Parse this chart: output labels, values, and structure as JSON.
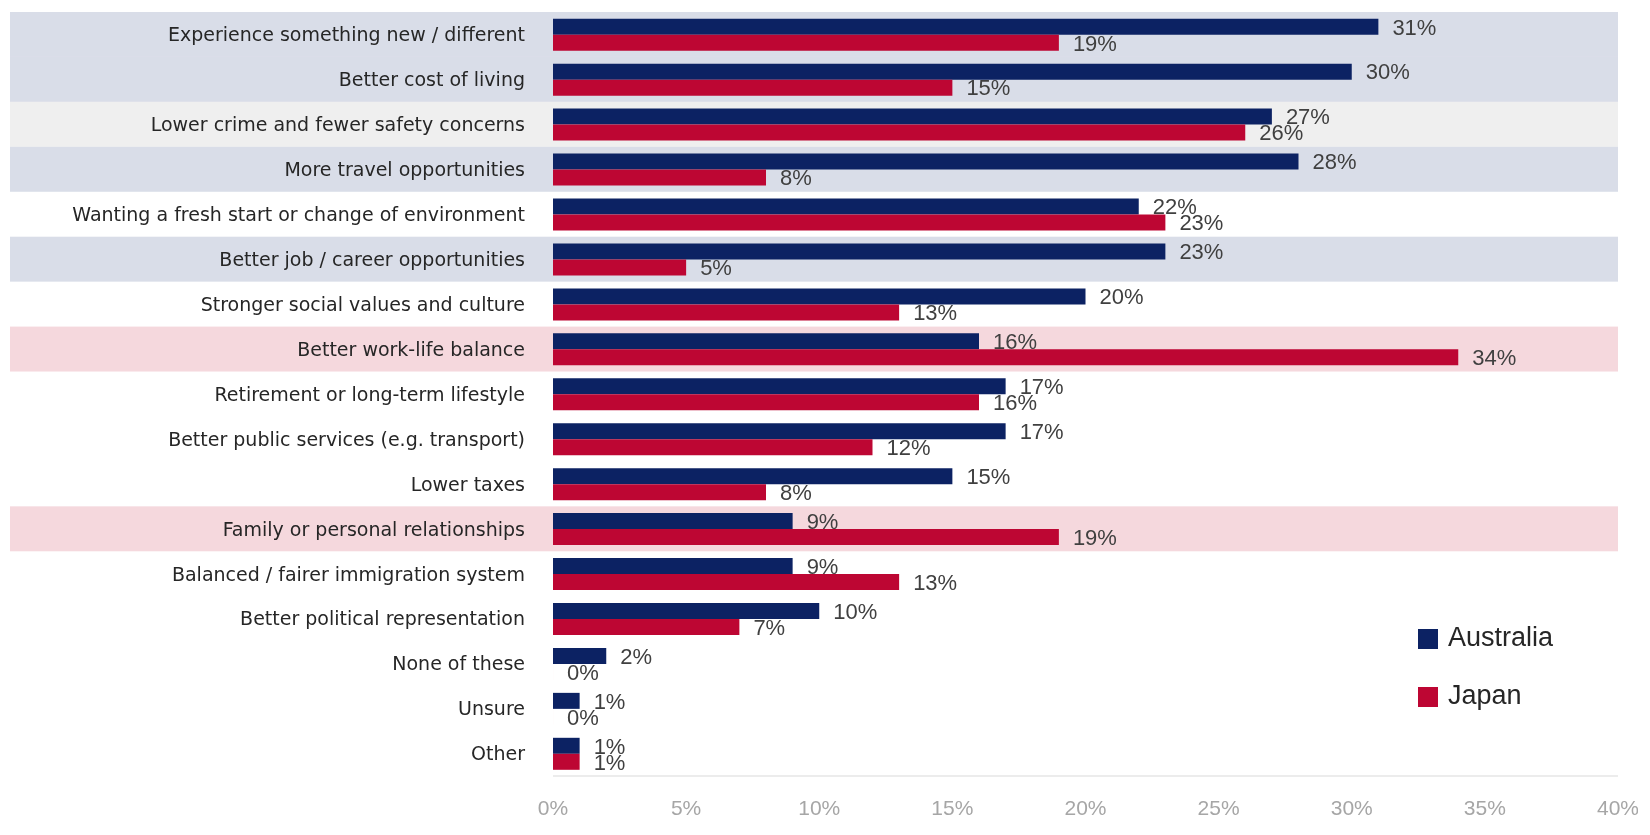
{
  "chart_data": {
    "type": "bar",
    "orientation": "horizontal",
    "categories": [
      "Experience something new / different",
      "Better cost of living",
      "Lower crime and fewer safety concerns",
      "More travel opportunities",
      "Wanting a fresh start or change of environment",
      "Better job / career opportunities",
      "Stronger social values and culture",
      "Better work-life balance",
      "Retirement or long-term lifestyle",
      "Better public services (e.g. transport)",
      "Lower taxes",
      "Family or personal relationships",
      "Balanced / fairer immigration system",
      "Better political representation",
      "None of these",
      "Unsure",
      "Other"
    ],
    "series": [
      {
        "name": "Australia",
        "color": "#0c2263",
        "values": [
          31,
          30,
          27,
          28,
          22,
          23,
          20,
          16,
          17,
          17,
          15,
          9,
          9,
          10,
          2,
          1,
          1
        ],
        "value_labels": [
          "31%",
          "30%",
          "27%",
          "28%",
          "22%",
          "23%",
          "20%",
          "16%",
          "17%",
          "17%",
          "15%",
          "9%",
          "9%",
          "10%",
          "2%",
          "1%",
          "1%"
        ]
      },
      {
        "name": "Japan",
        "color": "#bd0633",
        "values": [
          19,
          15,
          26,
          8,
          23,
          5,
          13,
          34,
          16,
          12,
          8,
          19,
          13,
          7,
          0,
          0,
          1
        ],
        "value_labels": [
          "19%",
          "15%",
          "26%",
          "8%",
          "23%",
          "5%",
          "13%",
          "34%",
          "16%",
          "12%",
          "8%",
          "19%",
          "13%",
          "7%",
          "0%",
          "0%",
          "1%"
        ]
      }
    ],
    "xlim": [
      0,
      40
    ],
    "xticks": [
      {
        "value": 0,
        "label": "0%"
      },
      {
        "value": 5,
        "label": "5%"
      },
      {
        "value": 10,
        "label": "10%"
      },
      {
        "value": 15,
        "label": "15%"
      },
      {
        "value": 20,
        "label": "20%"
      },
      {
        "value": 25,
        "label": "25%"
      },
      {
        "value": 30,
        "label": "30%"
      },
      {
        "value": 35,
        "label": "35%"
      },
      {
        "value": 40,
        "label": "40%"
      }
    ],
    "bands": [
      {
        "axis": "y",
        "from": "Experience something new / different",
        "to": "Experience something new / different",
        "color": "#d9dde8"
      },
      {
        "axis": "y",
        "from": "Better cost of living",
        "to": "Better cost of living",
        "color": "#d9dde8"
      },
      {
        "axis": "y",
        "from": "Lower crime and fewer safety concerns",
        "to": "Lower crime and fewer safety concerns",
        "color": "#efefef"
      },
      {
        "axis": "y",
        "from": "More travel opportunities",
        "to": "More travel opportunities",
        "color": "#d9dde8"
      },
      {
        "axis": "y",
        "from": "Better job / career opportunities",
        "to": "Better job / career opportunities",
        "color": "#d9dde8"
      },
      {
        "axis": "y",
        "from": "Better work-life balance",
        "to": "Better work-life balance",
        "color": "#f5d8dd"
      },
      {
        "axis": "y",
        "from": "Family or personal relationships",
        "to": "Family or personal relationships",
        "color": "#f5d8dd"
      }
    ],
    "grid": false,
    "legend": "bottom right"
  }
}
